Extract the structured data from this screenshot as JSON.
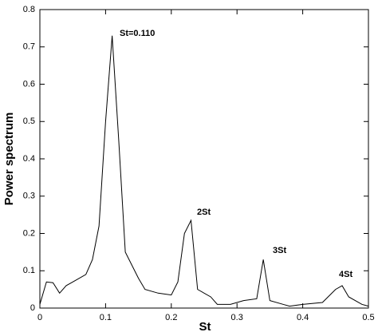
{
  "chart_data": {
    "type": "line",
    "xlabel": "St",
    "ylabel": "Power spectrum",
    "annotations": [
      "St=0.110",
      "2St",
      "3St",
      "4St"
    ],
    "xlim": [
      0,
      0.5
    ],
    "ylim": [
      0,
      0.8
    ],
    "xticks": [
      0,
      0.1,
      0.2,
      0.3,
      0.4,
      0.5
    ],
    "yticks": [
      0,
      0.1,
      0.2,
      0.3,
      0.4,
      0.5,
      0.6,
      0.7,
      0.8
    ],
    "series": [
      {
        "color": "#000000",
        "x": [
          0,
          0.01,
          0.02,
          0.03,
          0.04,
          0.05,
          0.07,
          0.08,
          0.09,
          0.1,
          0.11,
          0.12,
          0.13,
          0.15,
          0.16,
          0.18,
          0.2,
          0.21,
          0.22,
          0.23,
          0.24,
          0.26,
          0.27,
          0.29,
          0.31,
          0.33,
          0.34,
          0.35,
          0.37,
          0.38,
          0.4,
          0.43,
          0.45,
          0.46,
          0.47,
          0.49,
          0.5
        ],
        "values": [
          0.01,
          0.07,
          0.068,
          0.04,
          0.06,
          0.07,
          0.09,
          0.13,
          0.22,
          0.5,
          0.73,
          0.45,
          0.15,
          0.08,
          0.05,
          0.04,
          0.035,
          0.07,
          0.2,
          0.235,
          0.05,
          0.03,
          0.01,
          0.01,
          0.02,
          0.025,
          0.13,
          0.02,
          0.01,
          0.005,
          0.01,
          0.015,
          0.05,
          0.06,
          0.03,
          0.01,
          0.005
        ]
      }
    ]
  }
}
